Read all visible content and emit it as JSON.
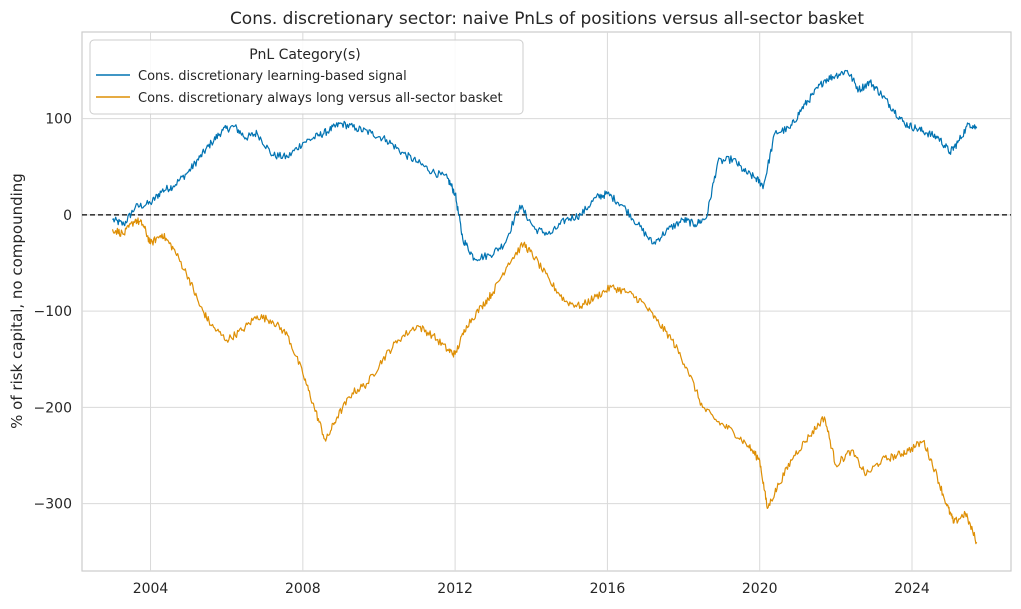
{
  "chart_data": {
    "type": "line",
    "title": "Cons. discretionary sector: naive PnLs of positions versus all-sector basket",
    "xlabel": "",
    "ylabel": "% of risk capital, no compounding",
    "xlim": [
      2002.2,
      2026.6
    ],
    "ylim": [
      -370,
      190
    ],
    "xticks": [
      2004,
      2008,
      2012,
      2016,
      2020,
      2024
    ],
    "yticks": [
      100,
      0,
      -100,
      -200,
      -300
    ],
    "ytick_labels": [
      "100",
      "0",
      "−100",
      "−200",
      "−300"
    ],
    "grid": true,
    "reference_line": {
      "y": 0,
      "style": "dashed",
      "color": "#000000"
    },
    "legend": {
      "title": "PnL Category(s)",
      "placement": "top-left"
    },
    "series": [
      {
        "name": "Cons. discretionary learning-based signal",
        "color": "#0173b2",
        "x": [
          2003.0,
          2003.3,
          2003.6,
          2004.0,
          2004.3,
          2004.6,
          2005.0,
          2005.3,
          2005.6,
          2005.9,
          2006.2,
          2006.5,
          2006.8,
          2007.2,
          2007.6,
          2008.0,
          2008.4,
          2008.7,
          2009.0,
          2009.4,
          2009.8,
          2010.2,
          2010.6,
          2011.0,
          2011.4,
          2011.8,
          2012.0,
          2012.2,
          2012.5,
          2012.9,
          2013.3,
          2013.7,
          2014.1,
          2014.5,
          2014.9,
          2015.3,
          2015.7,
          2016.0,
          2016.4,
          2016.8,
          2017.2,
          2017.6,
          2018.0,
          2018.3,
          2018.6,
          2018.9,
          2019.3,
          2019.6,
          2019.9,
          2020.1,
          2020.4,
          2020.8,
          2021.1,
          2021.4,
          2021.7,
          2022.0,
          2022.3,
          2022.6,
          2022.9,
          2023.2,
          2023.5,
          2023.8,
          2024.1,
          2024.4,
          2024.7,
          2025.0,
          2025.2,
          2025.5,
          2025.7
        ],
        "values": [
          -5,
          -10,
          8,
          12,
          25,
          30,
          45,
          60,
          75,
          88,
          92,
          80,
          85,
          62,
          60,
          75,
          82,
          88,
          95,
          90,
          85,
          78,
          65,
          55,
          45,
          38,
          22,
          -25,
          -45,
          -42,
          -30,
          10,
          -15,
          -20,
          -5,
          0,
          18,
          22,
          10,
          -10,
          -30,
          -15,
          -5,
          -10,
          -3,
          55,
          58,
          45,
          38,
          30,
          85,
          90,
          110,
          125,
          140,
          145,
          150,
          130,
          138,
          125,
          110,
          95,
          90,
          85,
          80,
          65,
          75,
          95,
          90
        ]
      },
      {
        "name": "Cons. discretionary always long versus all-sector basket",
        "color": "#de8f05",
        "x": [
          2003.0,
          2003.3,
          2003.6,
          2003.8,
          2004.0,
          2004.3,
          2004.6,
          2005.0,
          2005.3,
          2005.6,
          2006.0,
          2006.4,
          2006.8,
          2007.2,
          2007.6,
          2008.0,
          2008.3,
          2008.6,
          2008.9,
          2009.3,
          2009.7,
          2010.1,
          2010.5,
          2011.0,
          2011.4,
          2011.8,
          2012.0,
          2012.3,
          2012.7,
          2013.0,
          2013.4,
          2013.8,
          2014.1,
          2014.5,
          2014.9,
          2015.3,
          2015.7,
          2016.1,
          2016.5,
          2016.9,
          2017.3,
          2017.7,
          2018.1,
          2018.5,
          2018.9,
          2019.3,
          2019.7,
          2020.0,
          2020.2,
          2020.5,
          2020.9,
          2021.3,
          2021.7,
          2022.0,
          2022.4,
          2022.8,
          2023.2,
          2023.6,
          2023.9,
          2024.3,
          2024.6,
          2024.9,
          2025.1,
          2025.4,
          2025.7
        ],
        "values": [
          -15,
          -20,
          -5,
          -10,
          -30,
          -20,
          -35,
          -65,
          -95,
          -115,
          -130,
          -120,
          -105,
          -110,
          -125,
          -165,
          -200,
          -235,
          -210,
          -185,
          -175,
          -150,
          -130,
          -115,
          -125,
          -140,
          -145,
          -115,
          -95,
          -80,
          -50,
          -30,
          -45,
          -70,
          -90,
          -95,
          -85,
          -75,
          -80,
          -90,
          -110,
          -130,
          -160,
          -200,
          -215,
          -225,
          -240,
          -255,
          -305,
          -280,
          -250,
          -230,
          -210,
          -260,
          -245,
          -270,
          -255,
          -250,
          -245,
          -235,
          -265,
          -300,
          -320,
          -310,
          -340
        ]
      }
    ]
  }
}
